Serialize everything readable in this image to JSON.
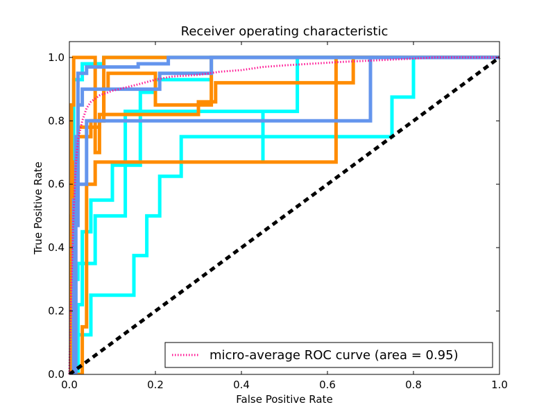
{
  "chart_data": {
    "type": "line",
    "title": "Receiver operating characteristic",
    "xlabel": "False Positive Rate",
    "ylabel": "True Positive Rate",
    "xlim": [
      0.0,
      1.0
    ],
    "ylim": [
      0.0,
      1.05
    ],
    "xticks": [
      "0.0",
      "0.2",
      "0.4",
      "0.6",
      "0.8",
      "1.0"
    ],
    "yticks": [
      "0.0",
      "0.2",
      "0.4",
      "0.6",
      "0.8",
      "1.0"
    ],
    "grid": false,
    "legend": {
      "placement": "lower-right",
      "entries": [
        "micro-average ROC curve (area = 0.95)"
      ]
    },
    "colors": {
      "aqua": "#00FFFF",
      "darkorange": "#FF8C00",
      "cornflowerblue": "#6495ED",
      "micro": "deeppink",
      "chance": "#000000"
    },
    "series": [
      {
        "name": "micro-average ROC curve (area = 0.95)",
        "color": "micro",
        "style": "dotted",
        "points": [
          [
            0,
            0
          ],
          [
            0.005,
            0.3
          ],
          [
            0.01,
            0.52
          ],
          [
            0.015,
            0.66
          ],
          [
            0.02,
            0.74
          ],
          [
            0.03,
            0.8
          ],
          [
            0.04,
            0.84
          ],
          [
            0.05,
            0.86
          ],
          [
            0.07,
            0.88
          ],
          [
            0.1,
            0.895
          ],
          [
            0.13,
            0.905
          ],
          [
            0.16,
            0.915
          ],
          [
            0.2,
            0.93
          ],
          [
            0.24,
            0.94
          ],
          [
            0.3,
            0.945
          ],
          [
            0.35,
            0.955
          ],
          [
            0.4,
            0.96
          ],
          [
            0.45,
            0.97
          ],
          [
            0.5,
            0.975
          ],
          [
            0.56,
            0.98
          ],
          [
            0.62,
            0.985
          ],
          [
            0.7,
            0.99
          ],
          [
            0.78,
            0.995
          ],
          [
            0.85,
            1.0
          ],
          [
            1.0,
            1.0
          ]
        ]
      },
      {
        "color": "aqua",
        "style": "solid",
        "points": [
          [
            0,
            0
          ],
          [
            0.02,
            0
          ],
          [
            0.02,
            0.125
          ],
          [
            0.05,
            0.125
          ],
          [
            0.05,
            0.25
          ],
          [
            0.15,
            0.25
          ],
          [
            0.15,
            0.375
          ],
          [
            0.18,
            0.375
          ],
          [
            0.18,
            0.5
          ],
          [
            0.21,
            0.5
          ],
          [
            0.21,
            0.625
          ],
          [
            0.26,
            0.625
          ],
          [
            0.26,
            0.75
          ],
          [
            0.75,
            0.75
          ],
          [
            0.75,
            0.875
          ],
          [
            0.8,
            0.875
          ],
          [
            0.8,
            1.0
          ],
          [
            1.0,
            1.0
          ]
        ]
      },
      {
        "color": "aqua",
        "style": "solid",
        "points": [
          [
            0,
            0
          ],
          [
            0.01,
            0
          ],
          [
            0.01,
            0.15
          ],
          [
            0.015,
            0.15
          ],
          [
            0.015,
            0.3
          ],
          [
            0.02,
            0.3
          ],
          [
            0.02,
            0.35
          ],
          [
            0.06,
            0.35
          ],
          [
            0.06,
            0.5
          ],
          [
            0.13,
            0.5
          ],
          [
            0.13,
            0.66
          ],
          [
            0.165,
            0.66
          ],
          [
            0.165,
            0.89
          ],
          [
            0.2,
            0.89
          ],
          [
            0.2,
            0.93
          ],
          [
            0.33,
            0.93
          ],
          [
            0.33,
            1.0
          ],
          [
            1.0,
            1.0
          ]
        ]
      },
      {
        "color": "aqua",
        "style": "solid",
        "points": [
          [
            0,
            0
          ],
          [
            0.02,
            0
          ],
          [
            0.02,
            0.22
          ],
          [
            0.03,
            0.22
          ],
          [
            0.03,
            0.45
          ],
          [
            0.05,
            0.45
          ],
          [
            0.05,
            0.55
          ],
          [
            0.1,
            0.55
          ],
          [
            0.1,
            0.66
          ],
          [
            0.13,
            0.66
          ],
          [
            0.13,
            0.83
          ],
          [
            0.45,
            0.83
          ],
          [
            0.45,
            0.67
          ],
          [
            0.45,
            0.83
          ],
          [
            0.53,
            0.83
          ],
          [
            0.53,
            1.0
          ],
          [
            1.0,
            1.0
          ]
        ]
      },
      {
        "color": "aqua",
        "style": "solid",
        "points": [
          [
            0,
            0
          ],
          [
            0.01,
            0
          ],
          [
            0.01,
            0.93
          ],
          [
            0.03,
            0.93
          ],
          [
            0.03,
            0.98
          ],
          [
            0.08,
            0.98
          ],
          [
            0.08,
            1.0
          ],
          [
            1.0,
            1.0
          ]
        ]
      },
      {
        "color": "darkorange",
        "style": "solid",
        "points": [
          [
            0,
            0
          ],
          [
            0.005,
            0
          ],
          [
            0.005,
            0.5
          ],
          [
            0.01,
            0.5
          ],
          [
            0.01,
            0.67
          ],
          [
            0.02,
            0.67
          ],
          [
            0.02,
            0.78
          ],
          [
            0.07,
            0.78
          ],
          [
            0.07,
            0.82
          ],
          [
            0.3,
            0.82
          ],
          [
            0.3,
            0.86
          ],
          [
            0.34,
            0.86
          ],
          [
            0.34,
            0.92
          ],
          [
            0.66,
            0.92
          ],
          [
            0.66,
            1.0
          ],
          [
            1.0,
            1.0
          ]
        ]
      },
      {
        "color": "darkorange",
        "style": "solid",
        "points": [
          [
            0,
            0
          ],
          [
            0.03,
            0
          ],
          [
            0.03,
            0.15
          ],
          [
            0.04,
            0.15
          ],
          [
            0.04,
            0.6
          ],
          [
            0.06,
            0.6
          ],
          [
            0.06,
            0.67
          ],
          [
            0.62,
            0.67
          ],
          [
            0.62,
            1.0
          ],
          [
            1.0,
            1.0
          ]
        ]
      },
      {
        "color": "darkorange",
        "style": "solid",
        "points": [
          [
            0,
            0
          ],
          [
            0.01,
            0
          ],
          [
            0.01,
            0.6
          ],
          [
            0.02,
            0.6
          ],
          [
            0.02,
            0.75
          ],
          [
            0.05,
            0.75
          ],
          [
            0.05,
            0.8
          ],
          [
            0.08,
            0.8
          ],
          [
            0.08,
            0.9
          ],
          [
            0.09,
            0.9
          ],
          [
            0.09,
            0.95
          ],
          [
            0.2,
            0.95
          ],
          [
            0.2,
            0.85
          ],
          [
            0.33,
            0.85
          ],
          [
            0.33,
            1.0
          ],
          [
            1.0,
            1.0
          ]
        ]
      },
      {
        "color": "darkorange",
        "style": "solid",
        "points": [
          [
            0,
            0
          ],
          [
            0.005,
            0
          ],
          [
            0.005,
            0.85
          ],
          [
            0.01,
            0.85
          ],
          [
            0.01,
            1.0
          ],
          [
            0.06,
            1.0
          ],
          [
            0.06,
            0.7
          ],
          [
            0.07,
            0.7
          ],
          [
            0.07,
            0.8
          ],
          [
            0.08,
            0.8
          ],
          [
            0.08,
            1.0
          ],
          [
            1.0,
            1.0
          ]
        ]
      },
      {
        "color": "cornflowerblue",
        "style": "solid",
        "points": [
          [
            0,
            0
          ],
          [
            0.015,
            0
          ],
          [
            0.015,
            0.55
          ],
          [
            0.02,
            0.55
          ],
          [
            0.02,
            0.6
          ],
          [
            0.04,
            0.6
          ],
          [
            0.04,
            0.8
          ],
          [
            0.7,
            0.8
          ],
          [
            0.7,
            1.0
          ],
          [
            1.0,
            1.0
          ]
        ]
      },
      {
        "color": "cornflowerblue",
        "style": "solid",
        "points": [
          [
            0,
            0
          ],
          [
            0.01,
            0
          ],
          [
            0.01,
            0.47
          ],
          [
            0.02,
            0.47
          ],
          [
            0.02,
            0.85
          ],
          [
            0.03,
            0.85
          ],
          [
            0.03,
            0.9
          ],
          [
            0.21,
            0.9
          ],
          [
            0.21,
            0.95
          ],
          [
            0.33,
            0.95
          ],
          [
            0.33,
            1.0
          ],
          [
            1.0,
            1.0
          ]
        ]
      },
      {
        "color": "cornflowerblue",
        "style": "solid",
        "points": [
          [
            0,
            0
          ],
          [
            0.01,
            0
          ],
          [
            0.01,
            0.55
          ],
          [
            0.015,
            0.55
          ],
          [
            0.015,
            0.75
          ],
          [
            0.02,
            0.75
          ],
          [
            0.02,
            0.95
          ],
          [
            0.04,
            0.95
          ],
          [
            0.04,
            0.97
          ],
          [
            0.16,
            0.97
          ],
          [
            0.16,
            0.98
          ],
          [
            0.23,
            0.98
          ],
          [
            0.23,
            1.0
          ],
          [
            1.0,
            1.0
          ]
        ]
      },
      {
        "color": "chance",
        "style": "dashed",
        "points": [
          [
            0,
            0
          ],
          [
            1,
            1
          ]
        ]
      }
    ]
  }
}
